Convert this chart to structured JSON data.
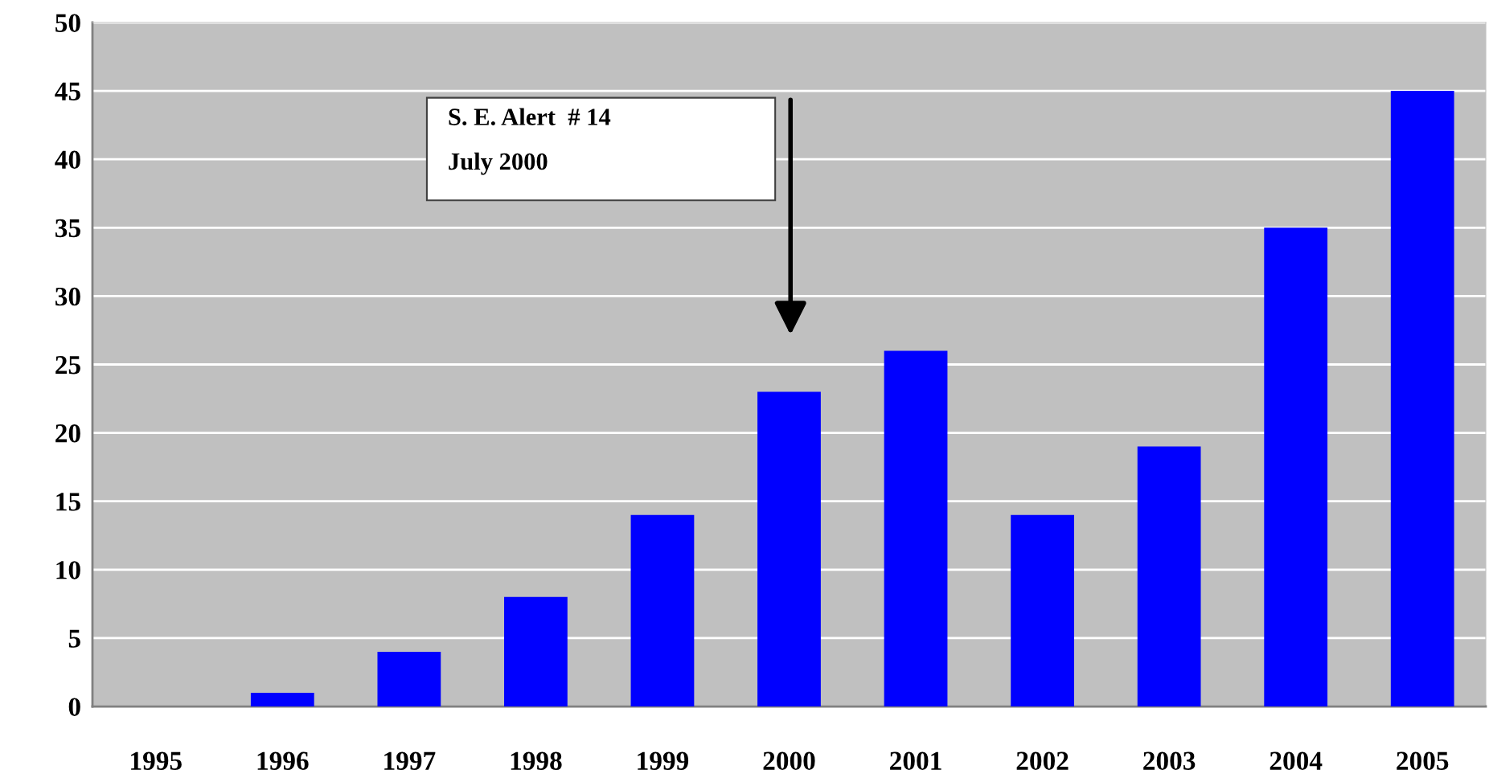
{
  "chart_data": {
    "type": "bar",
    "categories": [
      "1995",
      "1996",
      "1997",
      "1998",
      "1999",
      "2000",
      "2001",
      "2002",
      "2003",
      "2004",
      "2005"
    ],
    "values": [
      0,
      1,
      4,
      8,
      14,
      23,
      26,
      14,
      19,
      35,
      45
    ],
    "color": "#0000ff",
    "ylim": [
      0,
      50
    ],
    "yticks": [
      0,
      5,
      10,
      15,
      20,
      25,
      30,
      35,
      40,
      45,
      50
    ],
    "grid": "y",
    "annotations": [
      "S. E. Alert  # 14\n\nJuly 2000"
    ]
  }
}
